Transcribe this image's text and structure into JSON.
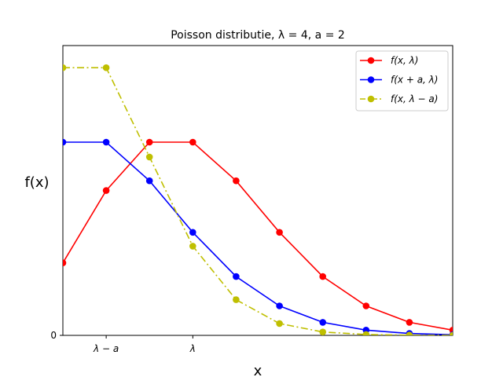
{
  "chart_data": {
    "type": "line",
    "title": "Poisson distributie, λ = 4, a = 2",
    "xlabel": "x",
    "ylabel": "f(x)",
    "x": [
      0,
      1,
      2,
      3,
      4,
      5,
      6,
      7,
      8,
      9
    ],
    "xlim": [
      0,
      9
    ],
    "ylim": [
      0,
      0.2931
    ],
    "x_ticks": [
      {
        "x": 1,
        "label": "λ − a"
      },
      {
        "x": 3,
        "label": "λ"
      }
    ],
    "y_ticks": [
      {
        "y": 0,
        "label": "0"
      }
    ],
    "series": [
      {
        "name": "f(x, λ)",
        "color": "#ff0000",
        "linestyle": "solid",
        "values": [
          0.0733,
          0.1465,
          0.1954,
          0.1954,
          0.1563,
          0.1042,
          0.0595,
          0.0298,
          0.0132,
          0.0053
        ]
      },
      {
        "name": "f(x + a, λ)",
        "color": "#0000ff",
        "linestyle": "solid",
        "values": [
          0.1954,
          0.1954,
          0.1563,
          0.1042,
          0.0595,
          0.0298,
          0.0132,
          0.0053,
          0.0019,
          0.0006
        ]
      },
      {
        "name": "f(x, λ − a)",
        "color": "#bfbf00",
        "linestyle": "dashdot",
        "values": [
          0.2707,
          0.2707,
          0.1804,
          0.0902,
          0.0361,
          0.012,
          0.0034,
          0.0009,
          0.0002,
          4e-05
        ]
      }
    ],
    "legend": "top-right",
    "grid": false
  }
}
